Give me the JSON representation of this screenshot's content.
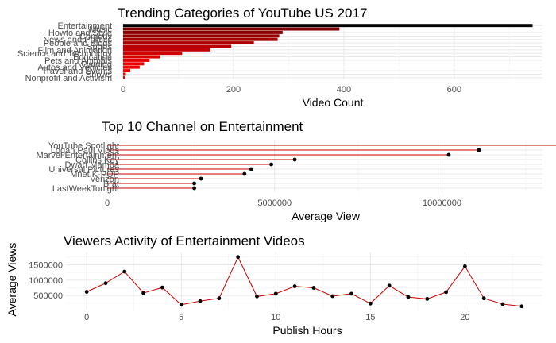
{
  "chart_data": [
    {
      "type": "bar",
      "orientation": "horizontal",
      "title": "Trending Categories of YouTube US 2017",
      "xlabel": "Video Count",
      "ylabel": "",
      "xlim": [
        0,
        760
      ],
      "xticks": [
        0,
        200,
        400,
        600
      ],
      "categories": [
        "Entertainment",
        "Music",
        "Howto and Style",
        "Comedy",
        "News and Politics",
        "People and Blogs",
        "Sports",
        "Film and Animation",
        "Science and Technology",
        "Education",
        "Pets and Animals",
        "Gaming",
        "Autos and Vehicles",
        "Travel and Events",
        "Shows",
        "Nonprofit and Activism"
      ],
      "values": [
        742,
        392,
        289,
        283,
        280,
        237,
        196,
        158,
        107,
        67,
        48,
        38,
        30,
        13,
        5,
        3
      ],
      "colors": [
        "#000000",
        "#800000",
        "#8b0000",
        "#960000",
        "#a10000",
        "#ac0000",
        "#b80000",
        "#c30000",
        "#ce0000",
        "#d90000",
        "#e40000",
        "#ef0000",
        "#f50000",
        "#fa0000",
        "#fd0000",
        "#ff0000"
      ],
      "grid": true
    },
    {
      "type": "lollipop",
      "orientation": "horizontal",
      "title": "Top 10 Channel on Entertainment",
      "xlabel": "Average View",
      "ylabel": "",
      "xlim": [
        0,
        13000000
      ],
      "xticks": [
        0,
        5000000,
        10000000
      ],
      "categories": [
        "YouTube Spotlight",
        "Logan Paul Vlogs",
        "Marvel Entertainment",
        "Collins Key",
        "Dwarf Mamba",
        "Universal Pictures",
        "Mnet K-POP",
        "Verizon",
        "Brat",
        "LastWeekTonight"
      ],
      "values": [
        13700000,
        11100000,
        10200000,
        5600000,
        4900000,
        4300000,
        4100000,
        2800000,
        2600000,
        2600000
      ],
      "line_color": "#cc0000",
      "point_color": "#000000",
      "grid": true
    },
    {
      "type": "line",
      "title": "Viewers Activity of Entertainment Videos",
      "xlabel": "Publish Hours",
      "ylabel": "Average Views",
      "xlim": [
        -1.1,
        24.1
      ],
      "ylim": [
        40000,
        1900000
      ],
      "xticks": [
        0,
        5,
        10,
        15,
        20
      ],
      "yticks": [
        500000,
        1000000,
        1500000
      ],
      "x": [
        0,
        1,
        2,
        3,
        4,
        5,
        6,
        7,
        8,
        9,
        10,
        11,
        12,
        13,
        14,
        15,
        16,
        17,
        18,
        19,
        20,
        21,
        22,
        23
      ],
      "values": [
        620000,
        900000,
        1280000,
        580000,
        760000,
        200000,
        320000,
        410000,
        1750000,
        470000,
        560000,
        800000,
        750000,
        480000,
        560000,
        240000,
        820000,
        450000,
        390000,
        610000,
        1450000,
        410000,
        220000,
        150000
      ],
      "line_color": "#cc0000",
      "point_color": "#000000",
      "grid": true
    }
  ]
}
